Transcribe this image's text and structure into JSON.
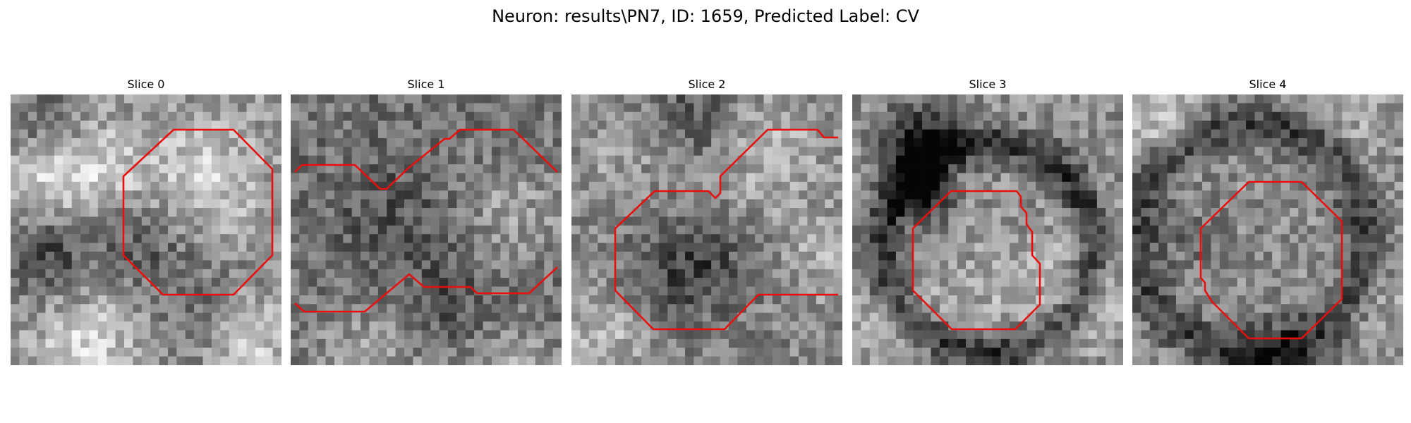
{
  "figure": {
    "title": "Neuron: results\\PN7, ID: 1659, Predicted Label: CV"
  },
  "contour_color": "#e8100f",
  "panels": [
    {
      "title": "Slice 0"
    },
    {
      "title": "Slice 1"
    },
    {
      "title": "Slice 2"
    },
    {
      "title": "Slice 3"
    },
    {
      "title": "Slice 4"
    }
  ]
}
